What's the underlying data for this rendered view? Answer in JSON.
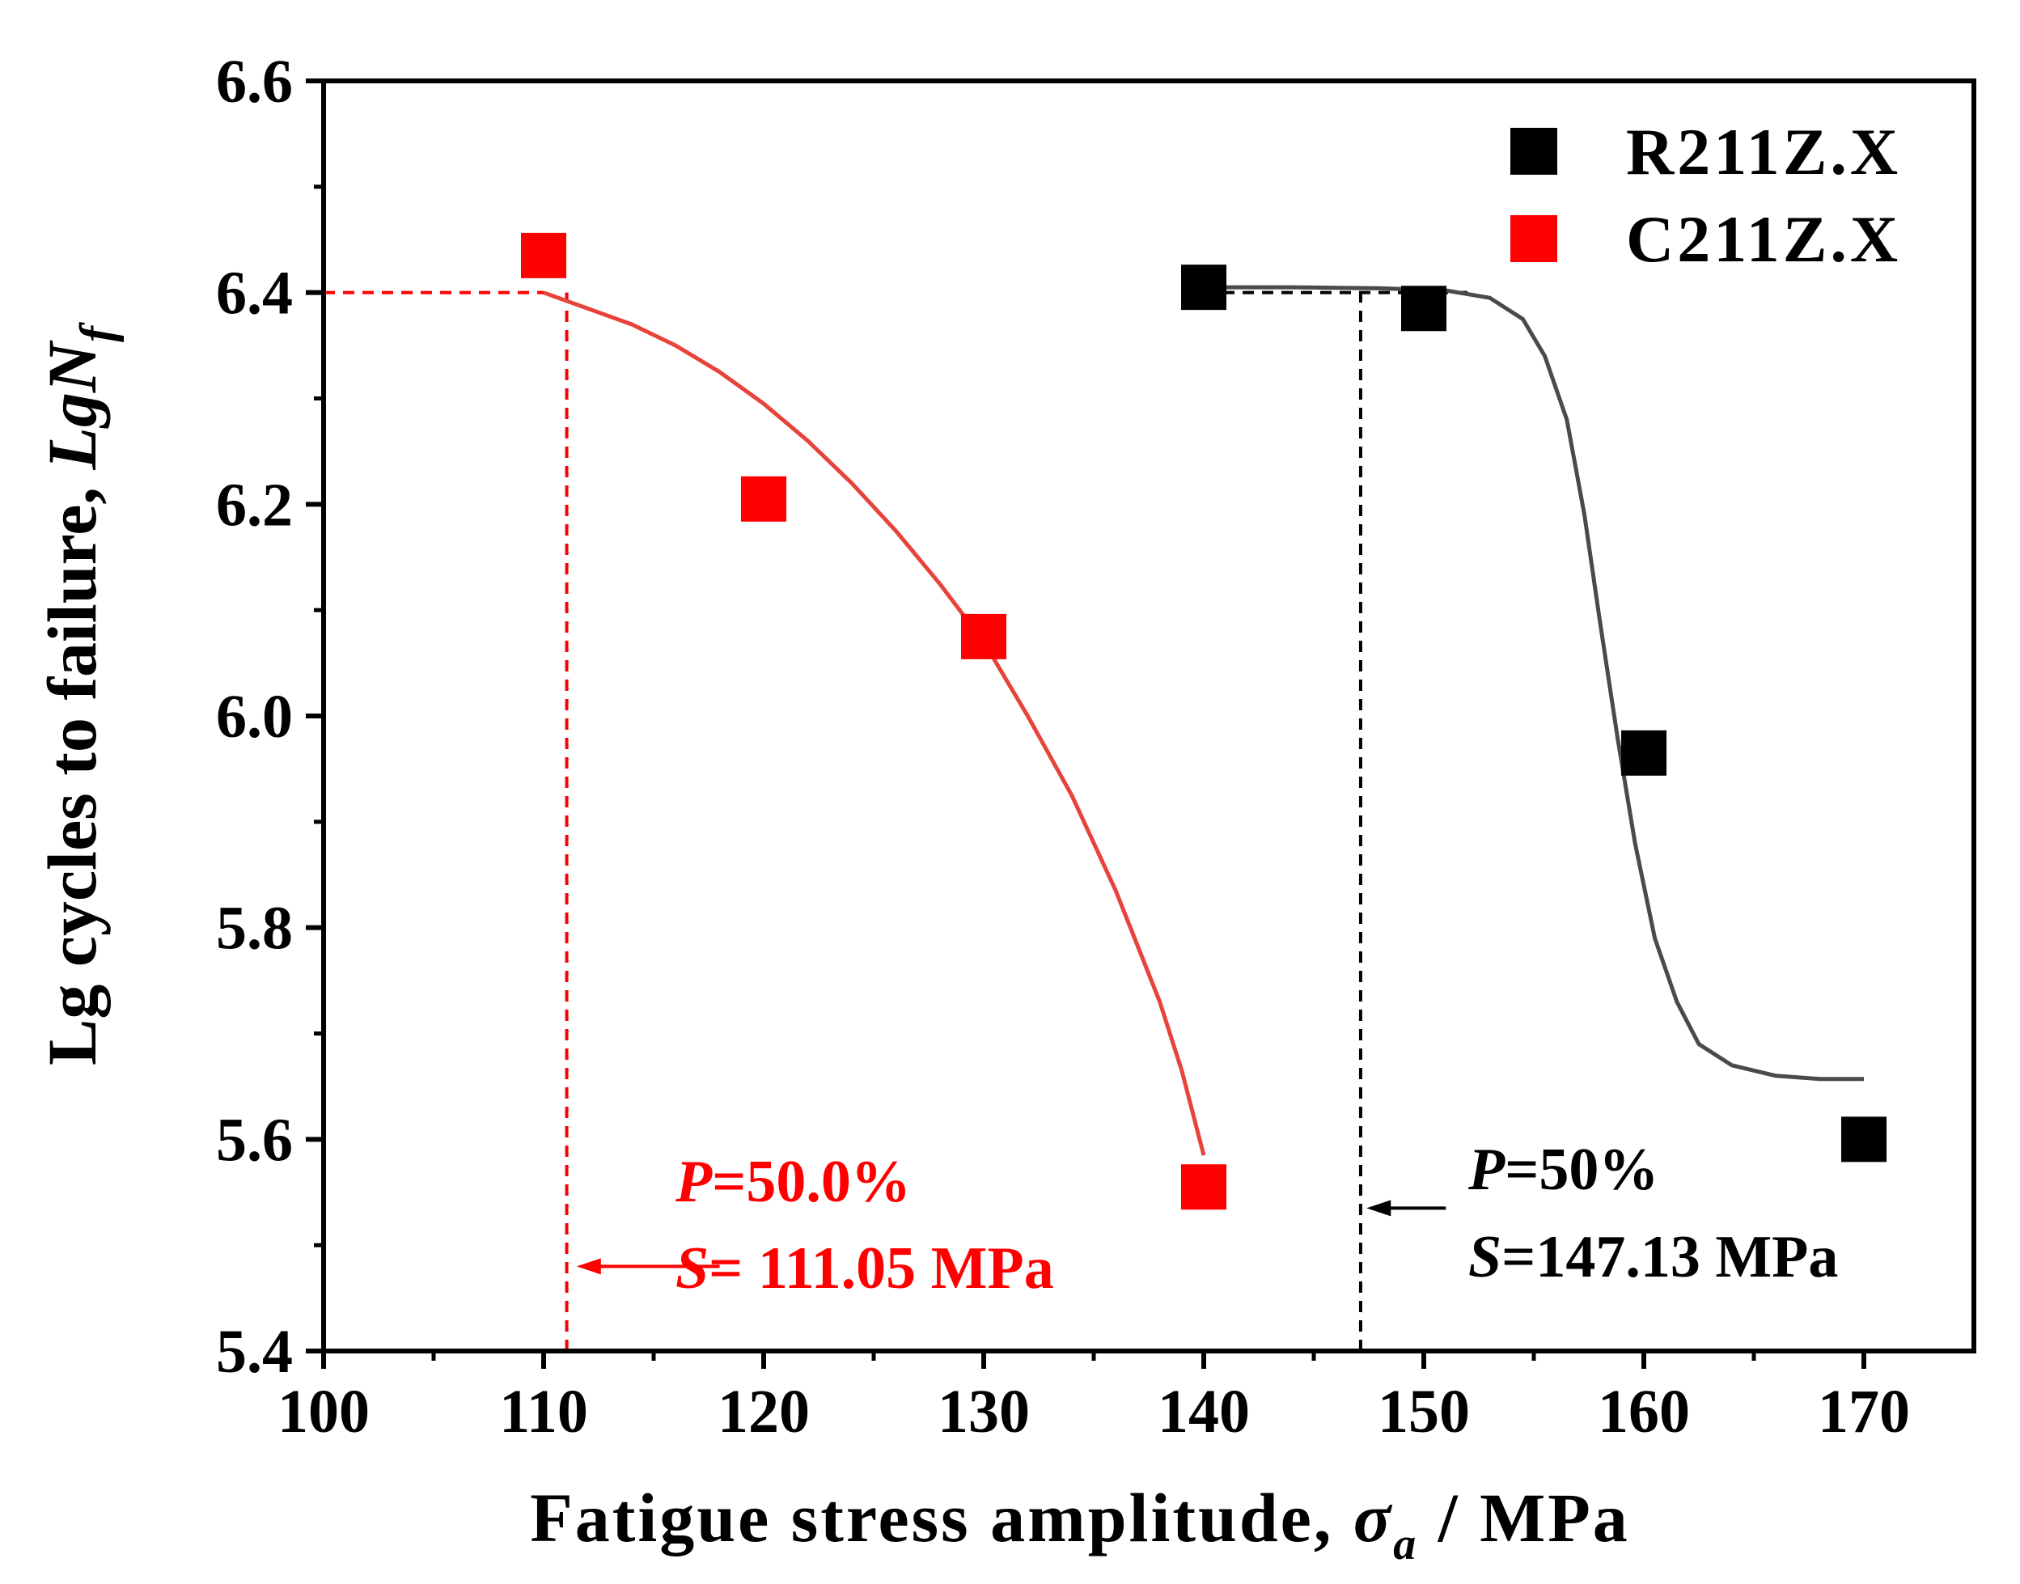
{
  "chart_data": {
    "type": "scatter",
    "title": "",
    "xlabel": "Fatigue stress amplitude, σa / MPa",
    "xlabel_parts": {
      "prefix": "Fatigue stress amplitude, ",
      "symbol": "σ",
      "subscript": "a",
      "suffix": " / MPa"
    },
    "ylabel": "Lg cycles to failure, LgNf",
    "ylabel_parts": {
      "prefix": "Lg cycles to failure, ",
      "symbol": "LgN",
      "subscript": "f"
    },
    "xlim": [
      100,
      175
    ],
    "ylim": [
      5.4,
      6.6
    ],
    "x_ticks": [
      100,
      110,
      120,
      130,
      140,
      150,
      160,
      170
    ],
    "y_ticks": [
      5.4,
      5.6,
      5.8,
      6.0,
      6.2,
      6.4,
      6.6
    ],
    "x_tick_labels": [
      "100",
      "110",
      "120",
      "130",
      "140",
      "150",
      "160",
      "170"
    ],
    "y_tick_labels": [
      "5.4",
      "5.6",
      "5.8",
      "6.0",
      "6.2",
      "6.4",
      "6.6"
    ],
    "grid": false,
    "legend_position": "top-right",
    "series": [
      {
        "name": "R211Z.X",
        "color": "#000000",
        "marker": "square",
        "points": [
          {
            "x": 140,
            "y": 6.405
          },
          {
            "x": 150,
            "y": 6.385
          },
          {
            "x": 160,
            "y": 5.965
          },
          {
            "x": 170,
            "y": 5.6
          }
        ],
        "fit_color": "#4a4a4a",
        "fit_curve": [
          [
            140,
            6.405
          ],
          [
            144,
            6.405
          ],
          [
            148,
            6.404
          ],
          [
            151,
            6.402
          ],
          [
            153,
            6.395
          ],
          [
            154.5,
            6.375
          ],
          [
            155.5,
            6.34
          ],
          [
            156.5,
            6.28
          ],
          [
            157.3,
            6.19
          ],
          [
            158,
            6.09
          ],
          [
            158.8,
            5.98
          ],
          [
            159.6,
            5.88
          ],
          [
            160.5,
            5.79
          ],
          [
            161.5,
            5.73
          ],
          [
            162.5,
            5.69
          ],
          [
            164,
            5.67
          ],
          [
            166,
            5.66
          ],
          [
            168,
            5.657
          ],
          [
            170,
            5.657
          ]
        ]
      },
      {
        "name": "C211Z.X",
        "color": "#ff0000",
        "marker": "square",
        "points": [
          {
            "x": 110,
            "y": 6.435
          },
          {
            "x": 120,
            "y": 6.205
          },
          {
            "x": 130,
            "y": 6.075
          },
          {
            "x": 140,
            "y": 5.555
          }
        ],
        "fit_color": "#e8433a",
        "fit_curve": [
          [
            110,
            6.4
          ],
          [
            112,
            6.385
          ],
          [
            114,
            6.37
          ],
          [
            116,
            6.35
          ],
          [
            118,
            6.325
          ],
          [
            120,
            6.295
          ],
          [
            122,
            6.26
          ],
          [
            124,
            6.22
          ],
          [
            126,
            6.175
          ],
          [
            128,
            6.125
          ],
          [
            130,
            6.07
          ],
          [
            132,
            6.0
          ],
          [
            134,
            5.925
          ],
          [
            136,
            5.835
          ],
          [
            138,
            5.73
          ],
          [
            139,
            5.665
          ],
          [
            140,
            5.585
          ]
        ]
      }
    ],
    "reference_lines": [
      {
        "series": "C211Z.X",
        "color": "#ff0000",
        "y": 6.4,
        "x_from": 100,
        "x_to": 110,
        "kind": "horizontal"
      },
      {
        "series": "C211Z.X",
        "color": "#ff0000",
        "x": 111.05,
        "y_from": 5.4,
        "y_to": 6.4,
        "kind": "vertical"
      },
      {
        "series": "R211Z.X",
        "color": "#000000",
        "y": 6.4,
        "x_from": 140,
        "x_to": 152,
        "kind": "horizontal"
      },
      {
        "series": "R211Z.X",
        "color": "#000000",
        "x": 147.13,
        "y_from": 5.4,
        "y_to": 6.4,
        "kind": "vertical"
      }
    ],
    "annotations": [
      {
        "series": "C211Z.X",
        "color": "#ff0000",
        "line1": {
          "symbol": "P",
          "value": "=50.0%"
        },
        "line2": {
          "symbol": "S",
          "value": "= 111.05 MPa"
        },
        "arrow_from": [
          118,
          5.48
        ],
        "arrow_to": [
          111.5,
          5.48
        ]
      },
      {
        "series": "R211Z.X",
        "color": "#000000",
        "line1": {
          "symbol": "P",
          "value": "=50%"
        },
        "line2": {
          "symbol": "S",
          "value": "=147.13 MPa"
        },
        "arrow_from": [
          151,
          5.535
        ],
        "arrow_to": [
          147.4,
          5.535
        ]
      }
    ]
  }
}
